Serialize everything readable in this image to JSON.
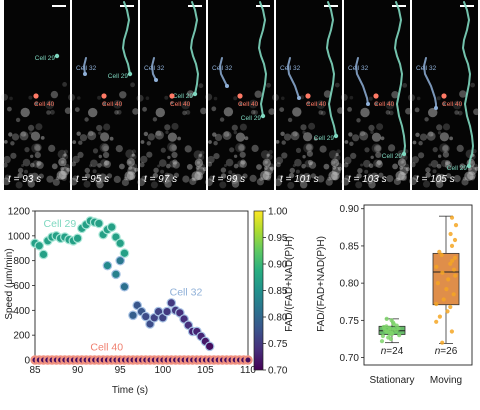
{
  "panel_top": {
    "frames": [
      {
        "time_label": "t = 93 s",
        "t": 93
      },
      {
        "time_label": "t = 95 s",
        "t": 95
      },
      {
        "time_label": "t = 97 s",
        "t": 97
      },
      {
        "time_label": "t = 99 s",
        "t": 99
      },
      {
        "time_label": "t = 101 s",
        "t": 101
      },
      {
        "time_label": "t = 103 s",
        "t": 103
      },
      {
        "time_label": "t = 105 s",
        "t": 105
      }
    ],
    "cell_labels": {
      "c29": "Cell 29",
      "c32": "Cell 32",
      "c40": "Cell 40"
    },
    "colors": {
      "c29": "#7fd8c0",
      "c32": "#8fb0d8",
      "c40": "#ff7a66",
      "bg": "#050505"
    }
  },
  "chart_data": [
    {
      "type": "scatter",
      "title": "",
      "xlabel": "Time (s)",
      "ylabel": "Speed (μm/min)",
      "xlim": [
        85,
        110
      ],
      "ylim": [
        0,
        1200
      ],
      "xticks": [
        85,
        90,
        95,
        100,
        105,
        110
      ],
      "yticks": [
        0,
        200,
        400,
        600,
        800,
        1000,
        1200
      ],
      "colorbar": {
        "label": "FAD/(FAD+NAD(P)H)",
        "range": [
          0.7,
          1.0
        ],
        "ticks": [
          "0.70",
          "0.75",
          "0.80",
          "0.85",
          "0.90",
          "0.95",
          "1.00"
        ],
        "colormap": "viridis"
      },
      "annotations": [
        {
          "text": "Cell 29",
          "x": 86.0,
          "y": 1070,
          "color": "#7fd8c0"
        },
        {
          "text": "Cell 32",
          "x": 100.8,
          "y": 520,
          "color": "#8fb0d8"
        },
        {
          "text": "Cell 40",
          "x": 91.5,
          "y": 75,
          "color": "#f08070"
        }
      ],
      "series": [
        {
          "name": "Cell 29",
          "points": [
            {
              "x": 85.0,
              "y": 940,
              "c": 0.87
            },
            {
              "x": 85.5,
              "y": 920,
              "c": 0.87
            },
            {
              "x": 86.0,
              "y": 850,
              "c": 0.87
            },
            {
              "x": 86.5,
              "y": 960,
              "c": 0.87
            },
            {
              "x": 87.0,
              "y": 990,
              "c": 0.87
            },
            {
              "x": 87.5,
              "y": 1000,
              "c": 0.87
            },
            {
              "x": 88.0,
              "y": 980,
              "c": 0.87
            },
            {
              "x": 88.5,
              "y": 990,
              "c": 0.87
            },
            {
              "x": 89.0,
              "y": 970,
              "c": 0.87
            },
            {
              "x": 89.5,
              "y": 960,
              "c": 0.87
            },
            {
              "x": 90.0,
              "y": 980,
              "c": 0.87
            },
            {
              "x": 90.5,
              "y": 1060,
              "c": 0.87
            },
            {
              "x": 91.0,
              "y": 1090,
              "c": 0.87
            },
            {
              "x": 91.5,
              "y": 1120,
              "c": 0.87
            },
            {
              "x": 92.0,
              "y": 1110,
              "c": 0.87
            },
            {
              "x": 92.5,
              "y": 1100,
              "c": 0.87
            },
            {
              "x": 93.0,
              "y": 1010,
              "c": 0.87
            },
            {
              "x": 93.5,
              "y": 1050,
              "c": 0.87
            },
            {
              "x": 94.0,
              "y": 1070,
              "c": 0.87
            },
            {
              "x": 94.5,
              "y": 990,
              "c": 0.87
            },
            {
              "x": 95.0,
              "y": 940,
              "c": 0.87
            },
            {
              "x": 95.5,
              "y": 860,
              "c": 0.87
            }
          ]
        },
        {
          "name": "Cell 32",
          "points": [
            {
              "x": 93.5,
              "y": 760,
              "c": 0.84
            },
            {
              "x": 94.5,
              "y": 690,
              "c": 0.83
            },
            {
              "x": 95.0,
              "y": 800,
              "c": 0.82
            },
            {
              "x": 95.5,
              "y": 590,
              "c": 0.81
            },
            {
              "x": 96.5,
              "y": 360,
              "c": 0.79
            },
            {
              "x": 97.0,
              "y": 440,
              "c": 0.78
            },
            {
              "x": 97.5,
              "y": 390,
              "c": 0.78
            },
            {
              "x": 98.0,
              "y": 350,
              "c": 0.77
            },
            {
              "x": 98.5,
              "y": 290,
              "c": 0.77
            },
            {
              "x": 99.0,
              "y": 340,
              "c": 0.76
            },
            {
              "x": 99.5,
              "y": 390,
              "c": 0.76
            },
            {
              "x": 100.0,
              "y": 340,
              "c": 0.76
            },
            {
              "x": 100.5,
              "y": 390,
              "c": 0.75
            },
            {
              "x": 101.0,
              "y": 460,
              "c": 0.75
            },
            {
              "x": 101.5,
              "y": 400,
              "c": 0.75
            },
            {
              "x": 102.0,
              "y": 380,
              "c": 0.74
            },
            {
              "x": 102.5,
              "y": 330,
              "c": 0.74
            },
            {
              "x": 103.0,
              "y": 280,
              "c": 0.74
            },
            {
              "x": 103.5,
              "y": 230,
              "c": 0.73
            },
            {
              "x": 104.0,
              "y": 230,
              "c": 0.73
            },
            {
              "x": 104.5,
              "y": 190,
              "c": 0.73
            },
            {
              "x": 105.0,
              "y": 150,
              "c": 0.72
            },
            {
              "x": 105.5,
              "y": 110,
              "c": 0.71
            }
          ]
        },
        {
          "name": "Cell 40",
          "points": [
            {
              "x": 85.0,
              "y": 0,
              "c": 0.71
            },
            {
              "x": 85.5,
              "y": 0,
              "c": 0.71
            },
            {
              "x": 86.0,
              "y": 0,
              "c": 0.71
            },
            {
              "x": 86.5,
              "y": 0,
              "c": 0.71
            },
            {
              "x": 87.0,
              "y": 0,
              "c": 0.71
            },
            {
              "x": 87.5,
              "y": 0,
              "c": 0.71
            },
            {
              "x": 88.0,
              "y": 0,
              "c": 0.71
            },
            {
              "x": 88.5,
              "y": 0,
              "c": 0.71
            },
            {
              "x": 89.0,
              "y": 0,
              "c": 0.71
            },
            {
              "x": 89.5,
              "y": 0,
              "c": 0.71
            },
            {
              "x": 90.0,
              "y": 0,
              "c": 0.71
            },
            {
              "x": 90.5,
              "y": 0,
              "c": 0.71
            },
            {
              "x": 91.0,
              "y": 0,
              "c": 0.71
            },
            {
              "x": 91.5,
              "y": 0,
              "c": 0.71
            },
            {
              "x": 92.0,
              "y": 0,
              "c": 0.71
            },
            {
              "x": 92.5,
              "y": 0,
              "c": 0.71
            },
            {
              "x": 93.0,
              "y": 0,
              "c": 0.71
            },
            {
              "x": 93.5,
              "y": 0,
              "c": 0.71
            },
            {
              "x": 94.0,
              "y": 0,
              "c": 0.71
            },
            {
              "x": 94.5,
              "y": 0,
              "c": 0.71
            },
            {
              "x": 95.0,
              "y": 0,
              "c": 0.71
            },
            {
              "x": 95.5,
              "y": 0,
              "c": 0.71
            },
            {
              "x": 96.0,
              "y": 0,
              "c": 0.71
            },
            {
              "x": 96.5,
              "y": 0,
              "c": 0.71
            },
            {
              "x": 97.0,
              "y": 0,
              "c": 0.71
            },
            {
              "x": 97.5,
              "y": 0,
              "c": 0.71
            },
            {
              "x": 98.0,
              "y": 0,
              "c": 0.71
            },
            {
              "x": 98.5,
              "y": 0,
              "c": 0.71
            },
            {
              "x": 99.0,
              "y": 0,
              "c": 0.71
            },
            {
              "x": 99.5,
              "y": 0,
              "c": 0.71
            },
            {
              "x": 100.0,
              "y": 0,
              "c": 0.71
            },
            {
              "x": 100.5,
              "y": 0,
              "c": 0.71
            },
            {
              "x": 101.0,
              "y": 0,
              "c": 0.71
            },
            {
              "x": 101.5,
              "y": 0,
              "c": 0.71
            },
            {
              "x": 102.0,
              "y": 0,
              "c": 0.71
            },
            {
              "x": 102.5,
              "y": 0,
              "c": 0.71
            },
            {
              "x": 103.0,
              "y": 0,
              "c": 0.71
            },
            {
              "x": 103.5,
              "y": 0,
              "c": 0.71
            },
            {
              "x": 104.0,
              "y": 0,
              "c": 0.71
            },
            {
              "x": 104.5,
              "y": 0,
              "c": 0.71
            },
            {
              "x": 105.0,
              "y": 0,
              "c": 0.71
            },
            {
              "x": 105.5,
              "y": 0,
              "c": 0.71
            },
            {
              "x": 106.0,
              "y": 0,
              "c": 0.71
            },
            {
              "x": 106.5,
              "y": 0,
              "c": 0.71
            },
            {
              "x": 107.0,
              "y": 0,
              "c": 0.71
            },
            {
              "x": 107.5,
              "y": 0,
              "c": 0.71
            },
            {
              "x": 108.0,
              "y": 0,
              "c": 0.71
            },
            {
              "x": 108.5,
              "y": 0,
              "c": 0.71
            },
            {
              "x": 109.0,
              "y": 0,
              "c": 0.71
            },
            {
              "x": 109.5,
              "y": 0,
              "c": 0.71
            },
            {
              "x": 110.0,
              "y": 0,
              "c": 0.71
            }
          ]
        }
      ]
    },
    {
      "type": "box",
      "title": "",
      "ylabel": "FAD/(FAD+NAD(P)H)",
      "ylim": [
        0.69,
        0.905
      ],
      "yticks": [
        0.7,
        0.75,
        0.8,
        0.85,
        0.9
      ],
      "ytick_labels": [
        "0.70",
        "0.75",
        "0.80",
        "0.85",
        "0.90"
      ],
      "categories": [
        "Stationary",
        "Moving"
      ],
      "n_labels": [
        "n=24",
        "n=26"
      ],
      "boxes": [
        {
          "name": "Stationary",
          "color": "#4caf50",
          "point_color": "#7ed36a",
          "whisker_low": 0.72,
          "q1": 0.731,
          "median": 0.736,
          "q3": 0.742,
          "whisker_high": 0.752,
          "points": [
            0.722,
            0.725,
            0.727,
            0.729,
            0.73,
            0.731,
            0.732,
            0.733,
            0.734,
            0.735,
            0.735,
            0.736,
            0.737,
            0.737,
            0.738,
            0.739,
            0.74,
            0.741,
            0.742,
            0.743,
            0.745,
            0.747,
            0.75,
            0.752
          ]
        },
        {
          "name": "Moving",
          "color": "#d97a2a",
          "point_color": "#f5a623",
          "whisker_low": 0.719,
          "q1": 0.771,
          "median": 0.815,
          "q3": 0.84,
          "whisker_high": 0.89,
          "points": [
            0.72,
            0.735,
            0.748,
            0.755,
            0.762,
            0.768,
            0.772,
            0.778,
            0.785,
            0.792,
            0.8,
            0.805,
            0.81,
            0.814,
            0.818,
            0.822,
            0.826,
            0.83,
            0.834,
            0.838,
            0.842,
            0.85,
            0.858,
            0.866,
            0.878,
            0.888
          ]
        }
      ]
    }
  ]
}
